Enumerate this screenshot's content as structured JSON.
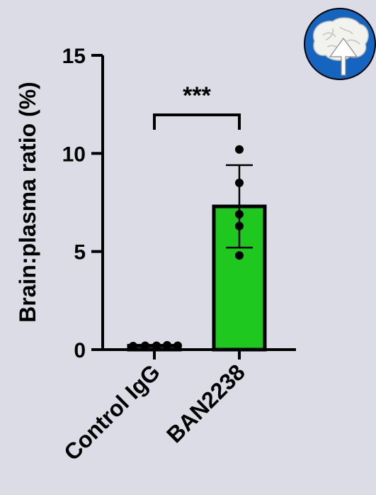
{
  "chart_data": {
    "type": "bar",
    "ylabel": "Brain:plasma ratio (%)",
    "ylim": [
      0,
      15
    ],
    "yticks": [
      0,
      5,
      10,
      15
    ],
    "categories": [
      "Control IgG",
      "BAN2238"
    ],
    "values": [
      0.2,
      7.3
    ],
    "error": [
      0.05,
      2.1
    ],
    "bar_colors": [
      "#1f7fd6",
      "#1ec81e"
    ],
    "points": [
      [
        0.18,
        0.2,
        0.2,
        0.22,
        0.2
      ],
      [
        10.2,
        8.5,
        6.9,
        6.3,
        4.8
      ]
    ],
    "significance": {
      "label": "***",
      "pair": [
        0,
        1
      ]
    }
  },
  "badge": {
    "icon": "brain-up-arrow-icon",
    "color": "#1565c0"
  }
}
